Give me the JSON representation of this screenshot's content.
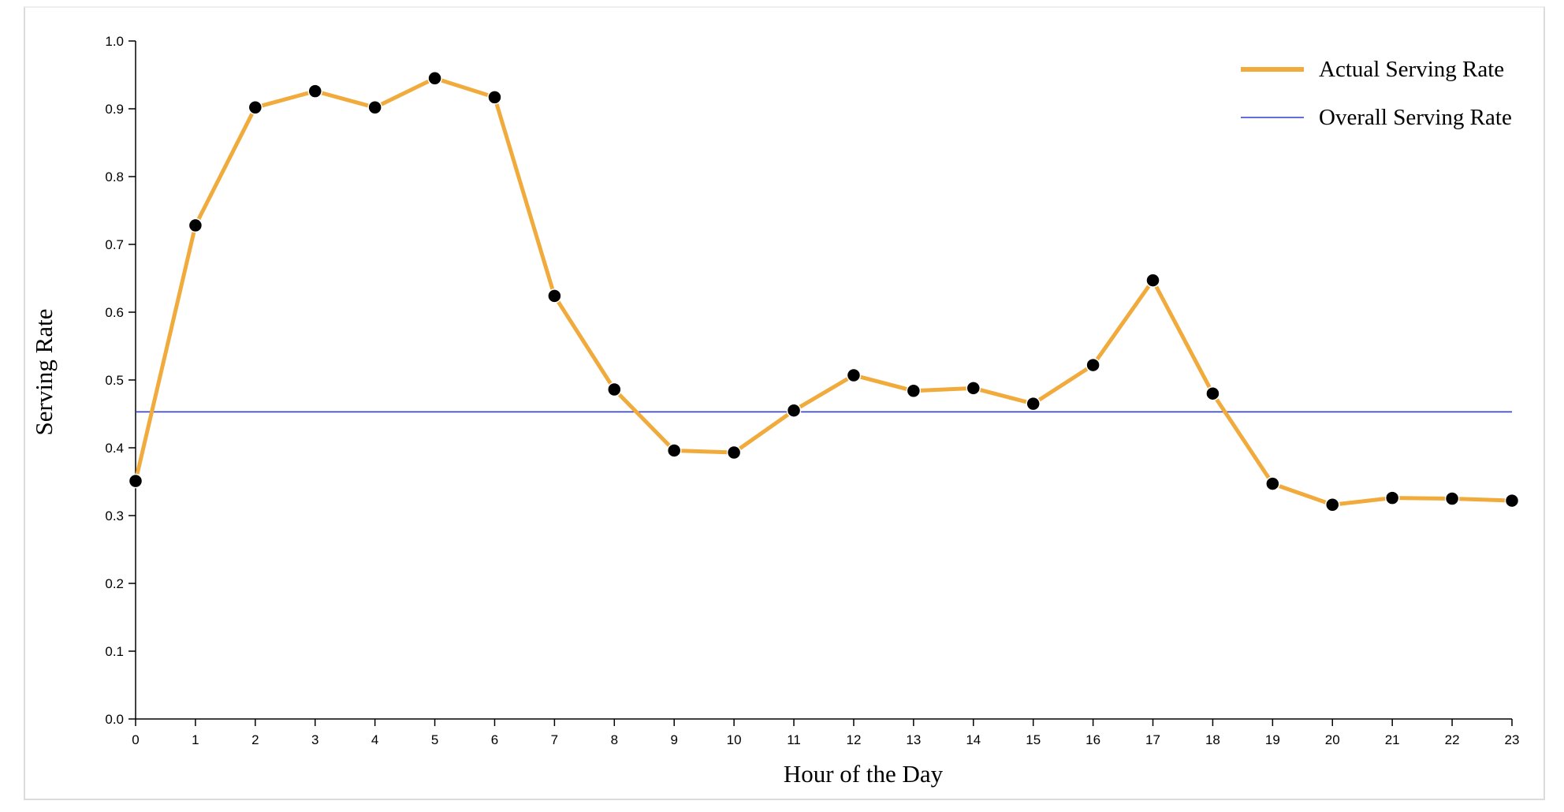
{
  "chart_data": {
    "type": "line",
    "xlabel": "Hour of the Day",
    "ylabel": "Serving Rate",
    "xlim": [
      0,
      23
    ],
    "ylim": [
      0,
      1.0
    ],
    "x": [
      0,
      1,
      2,
      3,
      4,
      5,
      6,
      7,
      8,
      9,
      10,
      11,
      12,
      13,
      14,
      15,
      16,
      17,
      18,
      19,
      20,
      21,
      22,
      23
    ],
    "x_ticks": [
      "0",
      "1",
      "2",
      "3",
      "4",
      "5",
      "6",
      "7",
      "8",
      "9",
      "10",
      "11",
      "12",
      "13",
      "14",
      "15",
      "16",
      "17",
      "18",
      "19",
      "20",
      "21",
      "22",
      "23"
    ],
    "y_ticks": [
      "0.0",
      "0.1",
      "0.2",
      "0.3",
      "0.4",
      "0.5",
      "0.6",
      "0.7",
      "0.8",
      "0.9",
      "1.0"
    ],
    "y_tick_values": [
      0,
      0.1,
      0.2,
      0.3,
      0.4,
      0.5,
      0.6,
      0.7,
      0.8,
      0.9,
      1.0
    ],
    "series": [
      {
        "name": "Actual Serving Rate",
        "color": "#f0ab3c",
        "marker_color": "#000000",
        "values": [
          0.351,
          0.728,
          0.902,
          0.926,
          0.902,
          0.945,
          0.917,
          0.624,
          0.486,
          0.396,
          0.393,
          0.455,
          0.507,
          0.484,
          0.488,
          0.465,
          0.522,
          0.647,
          0.48,
          0.347,
          0.316,
          0.326,
          0.325,
          0.322
        ]
      }
    ],
    "reference_line": {
      "name": "Overall Serving Rate",
      "color": "#2f3fd0",
      "value": 0.453
    },
    "legend": {
      "placement": "top-right"
    },
    "grid": false
  }
}
